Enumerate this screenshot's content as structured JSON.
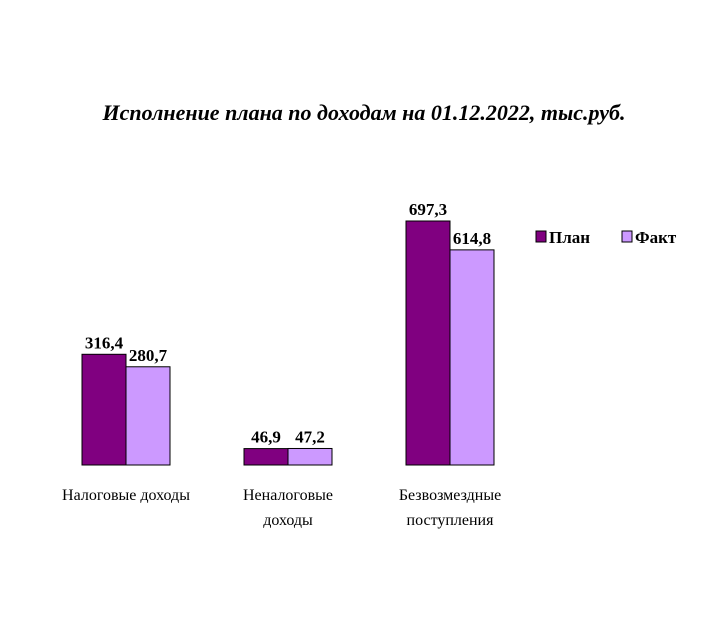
{
  "chart_data": {
    "type": "bar",
    "title": "Исполнение плана по доходам на 01.12.2022, тыс.руб.",
    "categories": [
      "Налоговые доходы",
      "Неналоговые доходы",
      "Безвозмездные поступления"
    ],
    "category_lines": [
      [
        "Налоговые доходы"
      ],
      [
        "Неналоговые",
        "доходы"
      ],
      [
        "Безвозмездные",
        "поступления"
      ]
    ],
    "series": [
      {
        "name": "План",
        "values": [
          316.4,
          46.9,
          697.3
        ],
        "labels": [
          "316,4",
          "46,9",
          "697,3"
        ],
        "color": "#800080"
      },
      {
        "name": "Факт",
        "values": [
          280.7,
          47.2,
          614.8
        ],
        "labels": [
          "280,7",
          "47,2",
          "614,8"
        ],
        "color": "#cc99ff"
      }
    ],
    "xlabel": "",
    "ylabel": "",
    "ylim": [
      0,
      700
    ],
    "grid": false,
    "legend": "right"
  }
}
